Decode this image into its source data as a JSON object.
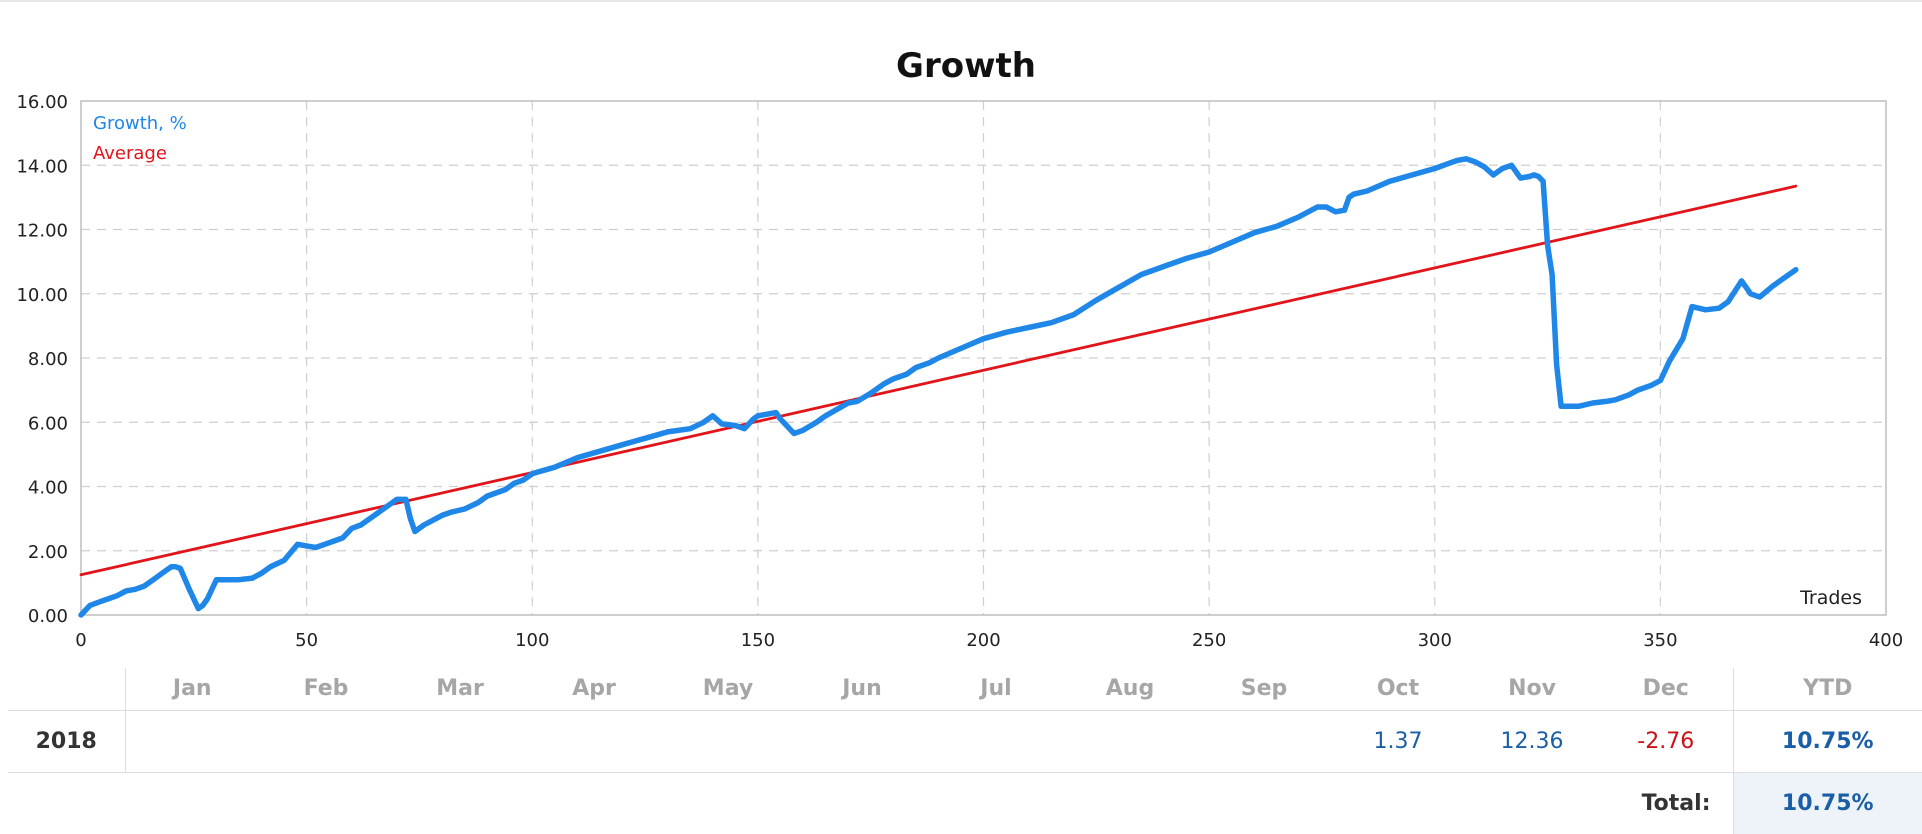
{
  "chart_data": {
    "type": "line",
    "title": "Growth",
    "xlabel": "Trades",
    "ylabel": "",
    "xlim": [
      0,
      400
    ],
    "ylim": [
      0,
      16
    ],
    "x_ticks": [
      "0",
      "50",
      "100",
      "150",
      "200",
      "250",
      "300",
      "350",
      "400"
    ],
    "y_ticks": [
      "0.00",
      "2.00",
      "4.00",
      "6.00",
      "8.00",
      "10.00",
      "12.00",
      "14.00",
      "16.00"
    ],
    "grid": true,
    "legend_position": "top-left",
    "series": [
      {
        "name": "Growth, %",
        "color": "#1f87e8",
        "x": [
          0,
          2,
          4,
          6,
          8,
          10,
          12,
          14,
          16,
          18,
          20,
          21,
          22,
          24,
          26,
          27,
          28,
          30,
          32,
          35,
          38,
          40,
          42,
          45,
          48,
          50,
          52,
          54,
          56,
          58,
          60,
          62,
          64,
          66,
          68,
          70,
          72,
          73,
          74,
          76,
          78,
          80,
          82,
          85,
          88,
          90,
          92,
          94,
          96,
          98,
          100,
          105,
          110,
          115,
          120,
          125,
          130,
          135,
          138,
          140,
          142,
          145,
          147,
          149,
          150,
          152,
          154,
          155,
          156,
          158,
          160,
          163,
          165,
          170,
          172,
          175,
          178,
          180,
          183,
          185,
          188,
          190,
          195,
          200,
          205,
          210,
          215,
          220,
          225,
          230,
          235,
          240,
          245,
          250,
          255,
          260,
          265,
          270,
          274,
          276,
          278,
          280,
          281,
          282,
          285,
          290,
          295,
          300,
          303,
          305,
          307,
          309,
          311,
          313,
          315,
          317,
          319,
          321,
          322,
          323,
          324,
          325,
          326,
          327,
          328,
          330,
          332,
          335,
          338,
          340,
          343,
          345,
          348,
          350,
          352,
          355,
          357,
          360,
          363,
          365,
          368,
          370,
          372,
          375,
          378,
          380
        ],
        "values": [
          0.0,
          0.3,
          0.4,
          0.5,
          0.6,
          0.75,
          0.8,
          0.9,
          1.1,
          1.3,
          1.5,
          1.5,
          1.45,
          0.8,
          0.2,
          0.3,
          0.5,
          1.1,
          1.1,
          1.1,
          1.15,
          1.3,
          1.5,
          1.7,
          2.2,
          2.15,
          2.1,
          2.2,
          2.3,
          2.4,
          2.7,
          2.8,
          3.0,
          3.2,
          3.4,
          3.6,
          3.6,
          3.0,
          2.6,
          2.8,
          2.95,
          3.1,
          3.2,
          3.3,
          3.5,
          3.7,
          3.8,
          3.9,
          4.1,
          4.2,
          4.4,
          4.6,
          4.9,
          5.1,
          5.3,
          5.5,
          5.7,
          5.8,
          6.0,
          6.2,
          5.95,
          5.9,
          5.8,
          6.1,
          6.2,
          6.25,
          6.3,
          6.1,
          5.95,
          5.65,
          5.75,
          6.0,
          6.2,
          6.6,
          6.65,
          6.9,
          7.2,
          7.35,
          7.5,
          7.7,
          7.85,
          8.0,
          8.3,
          8.6,
          8.8,
          8.95,
          9.1,
          9.35,
          9.8,
          10.2,
          10.6,
          10.85,
          11.1,
          11.3,
          11.6,
          11.9,
          12.1,
          12.4,
          12.7,
          12.7,
          12.55,
          12.6,
          13.0,
          13.1,
          13.2,
          13.5,
          13.7,
          13.9,
          14.05,
          14.15,
          14.2,
          14.1,
          13.95,
          13.7,
          13.9,
          14.0,
          13.6,
          13.65,
          13.7,
          13.65,
          13.5,
          11.5,
          10.6,
          7.8,
          6.5,
          6.5,
          6.5,
          6.6,
          6.65,
          6.7,
          6.85,
          7.0,
          7.15,
          7.3,
          7.9,
          8.6,
          9.6,
          9.5,
          9.55,
          9.75,
          10.4,
          10.0,
          9.9,
          10.25,
          10.55,
          10.75
        ]
      },
      {
        "name": "Average",
        "color": "#e2141a",
        "x": [
          0,
          380
        ],
        "values": [
          1.25,
          13.35
        ]
      }
    ]
  },
  "table": {
    "months": [
      "Jan",
      "Feb",
      "Mar",
      "Apr",
      "May",
      "Jun",
      "Jul",
      "Aug",
      "Sep",
      "Oct",
      "Nov",
      "Dec"
    ],
    "ytd_label": "YTD",
    "rows": [
      {
        "year": "2018",
        "values": [
          "",
          "",
          "",
          "",
          "",
          "",
          "",
          "",
          "",
          "1.37",
          "12.36",
          "-2.76"
        ],
        "ytd": "10.75%"
      }
    ],
    "total_label": "Total:",
    "total_value": "10.75%"
  }
}
